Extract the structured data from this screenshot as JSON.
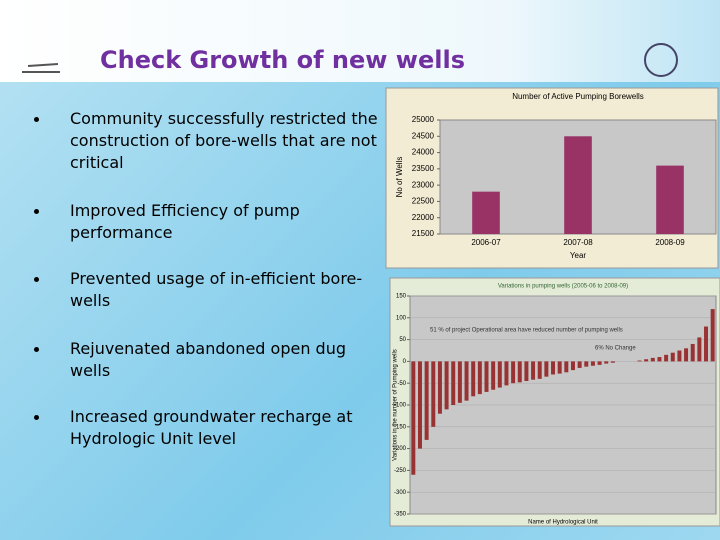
{
  "slide": {
    "title": "Check Growth of new wells",
    "bullets": [
      "Community successfully restricted the construction of bore-wells that are not critical",
      "Improved Efficiency of pump performance",
      "Prevented  usage of  in-efficient bore-wells",
      "Rejuvenated abandoned open dug wells",
      "Increased groundwater recharge at  Hydrologic Unit level"
    ]
  },
  "chart_data": [
    {
      "type": "bar",
      "title": "Number of Active Pumping Borewells",
      "x_label": "Year",
      "y_label": "No of Wells",
      "categories": [
        "2006-07",
        "2007-08",
        "2008-09"
      ],
      "values": [
        22800,
        24500,
        23600
      ],
      "color": "#993366",
      "ylim": [
        21500,
        25000
      ],
      "yticks": [
        21500,
        22000,
        22500,
        23000,
        23500,
        24000,
        24500,
        25000
      ],
      "grid": false
    },
    {
      "type": "bar",
      "title": "Variations in pumping wells (2005-06 to 2008-09)",
      "x_label": "Name of Hydrological Unit",
      "y_label": "Variations in the number of Pumping wells",
      "annotations": [
        "51 % of project Operational area have reduced number of pumping wells",
        "6% No Change"
      ],
      "categories": [
        null,
        null,
        null,
        null,
        null,
        null,
        null,
        null,
        null,
        null,
        null,
        null,
        null,
        null,
        null,
        null,
        null,
        null,
        null,
        null,
        null,
        null,
        null,
        null,
        null,
        null,
        null,
        null,
        null,
        null,
        null,
        null,
        null,
        null,
        null,
        null,
        null,
        null,
        null,
        null,
        null,
        null,
        null,
        null,
        null,
        null
      ],
      "values": [
        -260,
        -200,
        -180,
        -150,
        -120,
        -110,
        -100,
        -95,
        -90,
        -80,
        -75,
        -70,
        -65,
        -60,
        -55,
        -50,
        -48,
        -45,
        -42,
        -40,
        -35,
        -30,
        -28,
        -25,
        -20,
        -15,
        -12,
        -10,
        -8,
        -5,
        -3,
        0,
        0,
        0,
        2,
        5,
        8,
        10,
        15,
        20,
        25,
        30,
        40,
        55,
        80,
        120
      ],
      "color": "#993333",
      "ylim": [
        -350,
        150
      ],
      "yticks": [
        150,
        100,
        50,
        0,
        -50,
        -100,
        -150,
        -200,
        -250,
        -300,
        -350
      ],
      "grid": true
    }
  ]
}
